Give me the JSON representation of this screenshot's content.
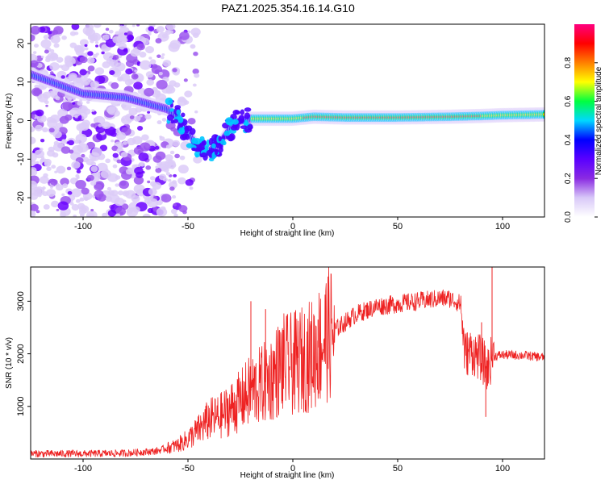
{
  "title": "PAZ1.2025.354.16.14.G10",
  "chart_data": [
    {
      "type": "heatmap",
      "name": "spectrogram",
      "xlabel": "Height of straight line (km)",
      "ylabel": "Frequency (Hz)",
      "xlim": [
        -125,
        120
      ],
      "ylim": [
        -25,
        25
      ],
      "xticks": [
        -100,
        -50,
        0,
        50,
        100
      ],
      "yticks": [
        -20,
        -10,
        0,
        10,
        20
      ],
      "colorbar": {
        "label": "Normalized spectral amplitude",
        "range": [
          0,
          1
        ],
        "ticks": [
          "0.0",
          "0.2",
          "0.4",
          "0.6",
          "0.8"
        ],
        "ticks_values": [
          0,
          0.2,
          0.4,
          0.6,
          0.8
        ],
        "colormap": [
          "#ffffff",
          "#d8c8f8",
          "#8a2be2",
          "#5a00ff",
          "#0000ff",
          "#00d8ff",
          "#00ff40",
          "#ffff00",
          "#ff8000",
          "#ff0000",
          "#ff0080"
        ]
      },
      "ridge": {
        "x": [
          -125,
          -100,
          -80,
          -70,
          -60,
          -55,
          -50,
          -45,
          -40,
          -35,
          -30,
          -25,
          -20,
          -10,
          0,
          10,
          25,
          50,
          75,
          90,
          100,
          120
        ],
        "y": [
          12,
          7,
          6,
          4.5,
          3,
          1,
          -3,
          -7,
          -8,
          -6,
          -2,
          0,
          0.5,
          0.5,
          0.5,
          1,
          0.8,
          0.8,
          1,
          1.2,
          1.4,
          1.6
        ]
      },
      "noise_region_x": [
        -125,
        -55
      ]
    },
    {
      "type": "line",
      "name": "snr",
      "xlabel": "Height of straight line (km)",
      "ylabel": "SNR (10 * v/v)",
      "xlim": [
        -125,
        120
      ],
      "ylim": [
        0,
        3650
      ],
      "xticks": [
        -100,
        -50,
        0,
        50,
        100
      ],
      "yticks": [
        1000,
        2000,
        3000
      ],
      "color": "#ee2222",
      "envelope": {
        "x": [
          -125,
          -100,
          -80,
          -65,
          -55,
          -50,
          -45,
          -40,
          -35,
          -30,
          -25,
          -20,
          -15,
          -10,
          -5,
          0,
          5,
          10,
          15,
          20,
          25,
          30,
          40,
          50,
          60,
          70,
          75,
          80,
          82,
          85,
          90,
          93,
          95,
          100,
          110,
          120
        ],
        "y": [
          100,
          100,
          110,
          150,
          260,
          380,
          550,
          750,
          800,
          950,
          1100,
          1300,
          1400,
          1550,
          1800,
          1800,
          1900,
          2000,
          2300,
          2450,
          2600,
          2750,
          2900,
          2950,
          3000,
          3050,
          3050,
          2950,
          2000,
          2050,
          1900,
          1700,
          1950,
          1980,
          1970,
          1930
        ]
      },
      "spikes": [
        {
          "x": -20,
          "y": 3000
        },
        {
          "x": -13,
          "y": 2850
        },
        {
          "x": -5,
          "y": 1100
        },
        {
          "x": 12,
          "y": 2650
        },
        {
          "x": 90,
          "y": 2600
        },
        {
          "x": 92,
          "y": 800
        },
        {
          "x": 95,
          "y": 3650
        }
      ]
    }
  ]
}
